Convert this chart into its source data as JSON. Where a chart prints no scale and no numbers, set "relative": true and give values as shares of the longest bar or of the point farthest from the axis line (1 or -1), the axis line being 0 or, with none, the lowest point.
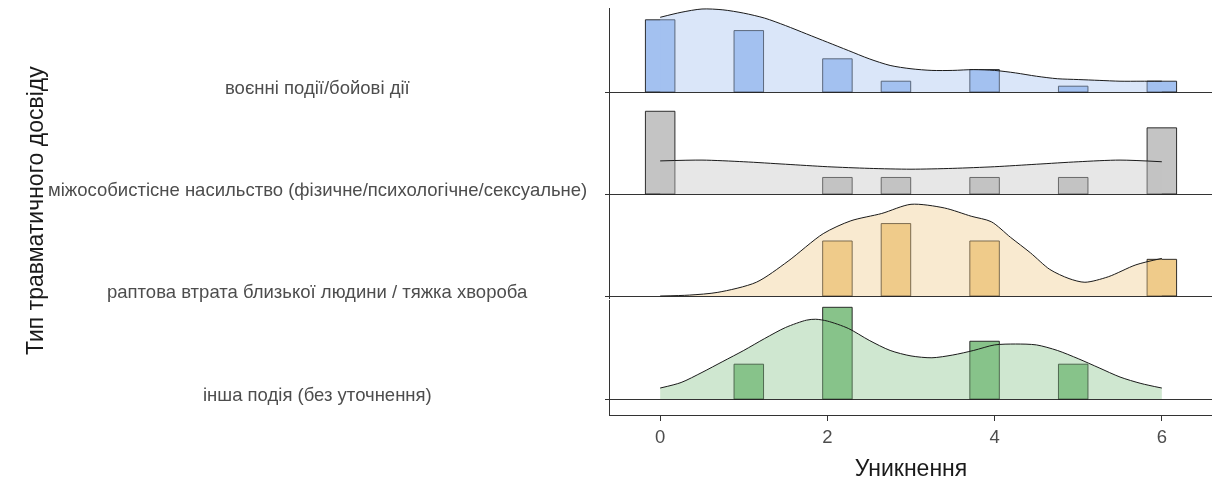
{
  "chart_data": [
    {
      "type": "bar",
      "ylabel": "воєнні події/бойові дії",
      "relative": true,
      "tick_labels": false,
      "xlim": [
        -0.6,
        6.6
      ],
      "x": [
        0,
        1.06,
        2.12,
        2.82,
        3.88,
        4.94,
        6
      ],
      "series": [
        {
          "color": "#a3c1f0",
          "values": [
            0.87,
            0.74,
            0.4,
            0.13,
            0.27,
            0.07,
            0.13
          ]
        },
        {
          "type": "area",
          "color": "#a3c1f0",
          "x": [
            0,
            0.25,
            0.5,
            0.75,
            1,
            1.25,
            1.5,
            1.75,
            2,
            2.25,
            2.5,
            2.75,
            3,
            3.25,
            3.5,
            3.75,
            4,
            4.25,
            4.5,
            4.75,
            5,
            5.25,
            5.5,
            5.75,
            6
          ],
          "values": [
            0.9,
            0.96,
            1,
            0.99,
            0.95,
            0.89,
            0.8,
            0.7,
            0.6,
            0.5,
            0.4,
            0.32,
            0.28,
            0.26,
            0.26,
            0.27,
            0.26,
            0.23,
            0.19,
            0.16,
            0.15,
            0.14,
            0.13,
            0.13,
            0.13
          ]
        }
      ]
    },
    {
      "type": "bar",
      "ylabel": "міжособистісне насильство (фізичне/психологічне/сексуальне)",
      "relative": true,
      "tick_labels": false,
      "xlim": [
        -0.6,
        6.6
      ],
      "x": [
        0,
        2.12,
        2.82,
        3.88,
        4.94,
        6
      ],
      "series": [
        {
          "color": "#c4c4c4",
          "values": [
            1,
            0.2,
            0.2,
            0.2,
            0.2,
            0.8
          ]
        },
        {
          "type": "area",
          "color": "#c4c4c4",
          "x": [
            0,
            0.5,
            1,
            1.5,
            2,
            2.5,
            3,
            3.5,
            4,
            4.5,
            5,
            5.5,
            6
          ],
          "values": [
            0.4,
            0.41,
            0.39,
            0.36,
            0.33,
            0.31,
            0.3,
            0.31,
            0.33,
            0.36,
            0.39,
            0.41,
            0.39
          ]
        }
      ]
    },
    {
      "type": "bar",
      "ylabel": "раптова втрата близької людини / тяжка хвороба",
      "annotations": [
        "Тип травматичного досвіду"
      ],
      "relative": true,
      "tick_labels": false,
      "xlim": [
        -0.6,
        6.6
      ],
      "x": [
        2.12,
        2.82,
        3.88,
        6
      ],
      "series": [
        {
          "color": "#efcb8a",
          "values": [
            0.6,
            0.79,
            0.6,
            0.4
          ]
        },
        {
          "type": "area",
          "color": "#efcb8a",
          "x": [
            0,
            0.35,
            0.69,
            1.15,
            1.53,
            1.95,
            2.28,
            2.65,
            3,
            3.4,
            3.72,
            3.96,
            4.19,
            4.43,
            4.66,
            4.89,
            5.08,
            5.36,
            5.69,
            6
          ],
          "values": [
            0,
            0.01,
            0.04,
            0.15,
            0.38,
            0.68,
            0.82,
            0.9,
            1,
            0.96,
            0.87,
            0.81,
            0.64,
            0.47,
            0.29,
            0.19,
            0.15,
            0.21,
            0.34,
            0.41
          ]
        }
      ]
    },
    {
      "type": "bar",
      "ylabel": "інша подія (без уточнення)",
      "xlabel": "Уникнення",
      "relative": true,
      "tick_labels": "x",
      "xlim": [
        -0.6,
        6.6
      ],
      "xticks": [
        0,
        2,
        4,
        6
      ],
      "x": [
        1.06,
        2.12,
        3.88,
        4.94
      ],
      "series": [
        {
          "color": "#88c38a",
          "values": [
            0.38,
            1,
            0.63,
            0.38
          ]
        },
        {
          "type": "area",
          "color": "#88c38a",
          "x": [
            0,
            0.25,
            0.5,
            0.75,
            1,
            1.25,
            1.5,
            1.75,
            1.86,
            2,
            2.25,
            2.5,
            2.75,
            3,
            3.25,
            3.5,
            3.75,
            4,
            4.25,
            4.5,
            4.75,
            5,
            5.25,
            5.5,
            5.75,
            6
          ],
          "values": [
            0.12,
            0.18,
            0.29,
            0.41,
            0.53,
            0.66,
            0.78,
            0.86,
            0.87,
            0.85,
            0.77,
            0.64,
            0.53,
            0.47,
            0.45,
            0.48,
            0.53,
            0.59,
            0.6,
            0.59,
            0.53,
            0.44,
            0.34,
            0.24,
            0.17,
            0.12
          ]
        }
      ]
    }
  ]
}
